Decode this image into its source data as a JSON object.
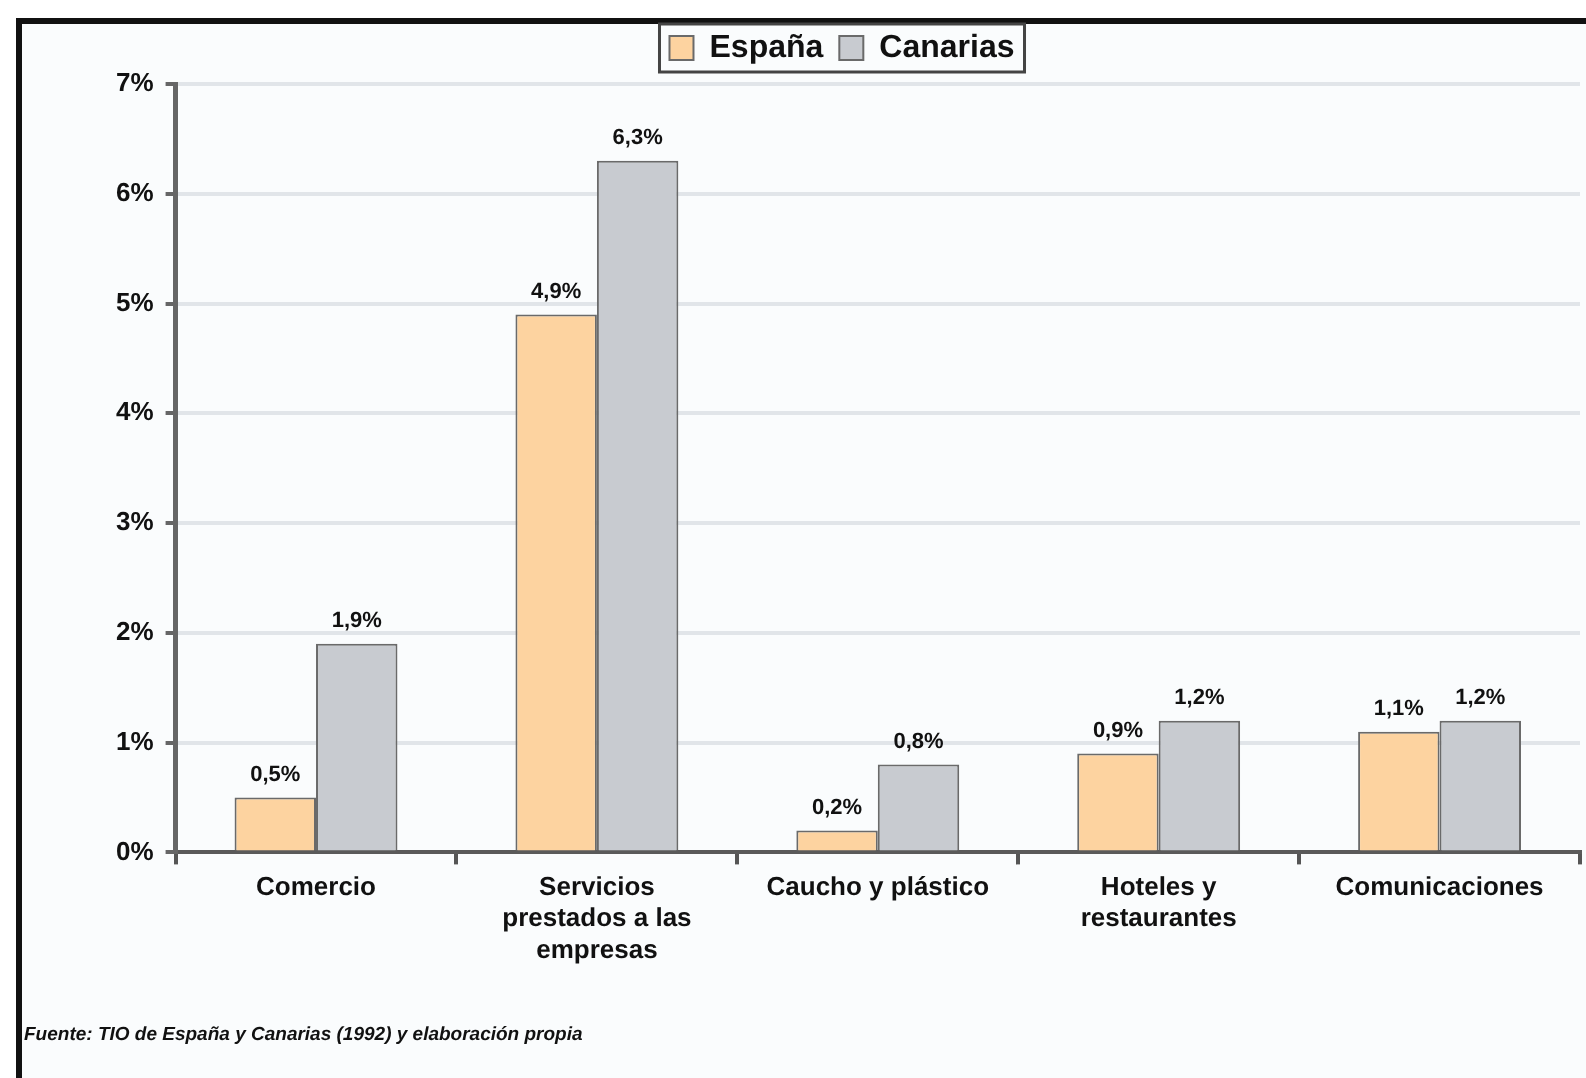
{
  "chart_data": {
    "type": "bar",
    "categories": [
      "Comercio",
      "Servicios prestados a las empresas",
      "Caucho y plástico",
      "Hoteles y restaurantes",
      "Comunicaciones"
    ],
    "series": [
      {
        "name": "España",
        "color": "#fdd3a0",
        "values": [
          0.5,
          4.9,
          0.2,
          0.9,
          1.1
        ],
        "value_labels": [
          "0,5%",
          "4,9%",
          "0,2%",
          "0,9%",
          "1,1%"
        ]
      },
      {
        "name": "Canarias",
        "color": "#c8cbd0",
        "values": [
          1.9,
          6.3,
          0.8,
          1.2,
          1.2
        ],
        "value_labels": [
          "1,9%",
          "6,3%",
          "0,8%",
          "1,2%",
          "1,2%"
        ]
      }
    ],
    "ylim": [
      0,
      7
    ],
    "yticks": [
      {
        "value": 0,
        "label": "0%"
      },
      {
        "value": 1,
        "label": "1%"
      },
      {
        "value": 2,
        "label": "2%"
      },
      {
        "value": 3,
        "label": "3%"
      },
      {
        "value": 4,
        "label": "4%"
      },
      {
        "value": 5,
        "label": "5%"
      },
      {
        "value": 6,
        "label": "6%"
      },
      {
        "value": 7,
        "label": "7%"
      }
    ],
    "grid": "y",
    "legend": "top",
    "annotations": [
      "Fuente: TIO de España y Canarias (1992) y elaboración propia"
    ]
  }
}
